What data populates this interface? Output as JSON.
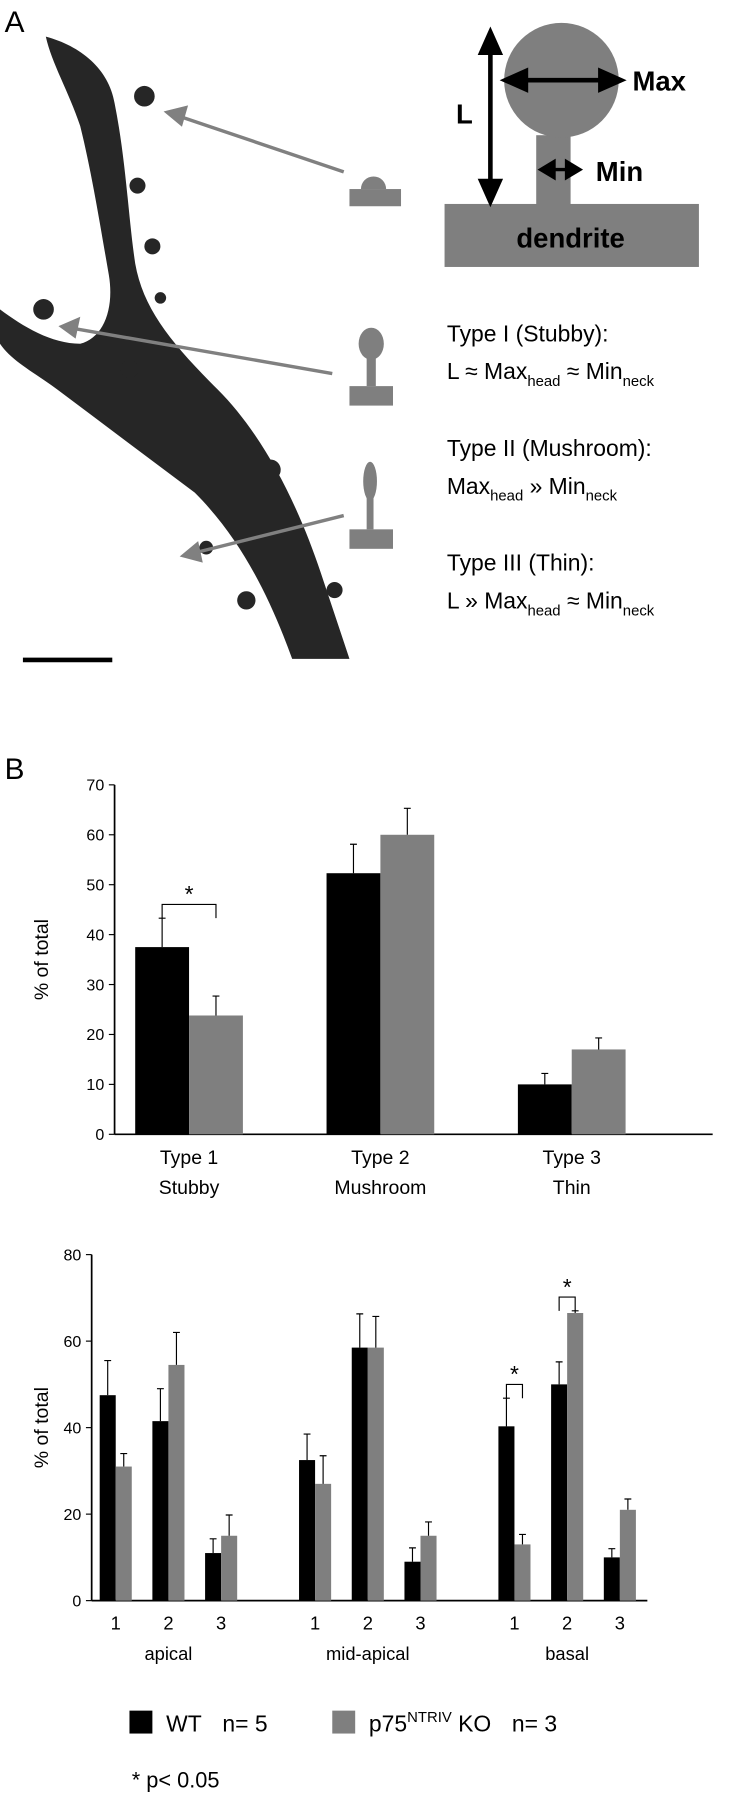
{
  "panel_a": {
    "label": "A",
    "diagram": {
      "length": "L",
      "max": "Max",
      "min": "Min",
      "base": "dendrite"
    },
    "types": [
      {
        "name": "Type I (Stubby):",
        "formula": [
          "L ≈ Max",
          "head",
          " ≈ Min",
          "neck"
        ]
      },
      {
        "name": "Type II (Mushroom):",
        "formula": [
          "Max",
          "head",
          " » Min",
          "neck"
        ]
      },
      {
        "name": "Type III (Thin):",
        "formula": [
          "L » Max",
          "head",
          " ≈ Min",
          "neck"
        ]
      }
    ]
  },
  "panel_b": {
    "label": "B"
  },
  "chart_data": [
    {
      "type": "bar",
      "ylabel": "% of total",
      "categories": [
        [
          "Type 1",
          "Stubby"
        ],
        [
          "Type 2",
          "Mushroom"
        ],
        [
          "Type 3",
          "Thin"
        ]
      ],
      "series": [
        {
          "color": "#000000",
          "values": [
            37.5,
            52.3,
            10
          ],
          "errors": [
            5.8,
            5.8,
            2.2
          ]
        },
        {
          "color": "#7f7f7f",
          "values": [
            23.8,
            60,
            17
          ],
          "errors": [
            3.9,
            5.3,
            2.3
          ]
        }
      ],
      "ylim": [
        0,
        70
      ],
      "yticks": [
        0,
        10,
        20,
        30,
        40,
        50,
        60,
        70
      ],
      "annotations": [
        {
          "text": "*",
          "category": 0
        }
      ]
    },
    {
      "type": "bar",
      "ylabel": "% of total",
      "categories": [
        "1",
        "2",
        "3",
        "1",
        "2",
        "3",
        "1",
        "2",
        "3"
      ],
      "groups": [
        "apical",
        "mid-apical",
        "basal"
      ],
      "series": [
        {
          "color": "#000000",
          "values": [
            47.5,
            41.5,
            11,
            32.5,
            58.5,
            9,
            40.3,
            50,
            10
          ],
          "errors": [
            8,
            7.5,
            3.3,
            6,
            7.8,
            3.2,
            6.5,
            5.2,
            2
          ]
        },
        {
          "color": "#7f7f7f",
          "values": [
            31,
            54.5,
            15,
            27,
            58.5,
            15,
            13,
            66.5,
            21
          ],
          "errors": [
            3,
            7.5,
            4.8,
            6.5,
            7.2,
            3.2,
            2.3,
            0.5,
            2.5
          ]
        }
      ],
      "ylim": [
        0,
        80
      ],
      "yticks": [
        0,
        20,
        40,
        60,
        80
      ],
      "annotations": [
        {
          "text": "*",
          "category": 6
        },
        {
          "text": "*",
          "category": 7
        }
      ]
    }
  ],
  "legend": {
    "entries": [
      {
        "label": [
          "WT"
        ],
        "n": "n= 5"
      },
      {
        "label": [
          "p75",
          "NTRIV",
          " KO"
        ],
        "n": "n= 3"
      }
    ],
    "note": "* p< 0.05"
  }
}
